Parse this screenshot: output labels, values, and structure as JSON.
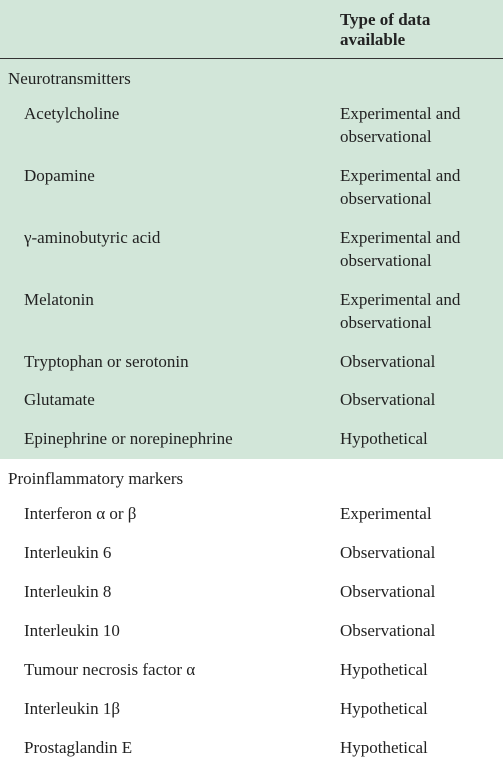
{
  "header": {
    "col1": "",
    "col2": "Type of data available"
  },
  "sections": [
    {
      "bg": "bg-green",
      "title": "Neurotransmitters",
      "rows": [
        {
          "name": "Acetylcholine",
          "data": "Experimental and observational"
        },
        {
          "name": "Dopamine",
          "data": "Experimental and observational"
        },
        {
          "name": "γ-aminobutyric acid",
          "data": "Experimental and observational"
        },
        {
          "name": "Melatonin",
          "data": "Experimental and observational"
        },
        {
          "name": "Tryptophan or serotonin",
          "data": "Observational"
        },
        {
          "name": "Glutamate",
          "data": "Observational"
        },
        {
          "name": "Epinephrine or norepinephrine",
          "data": "Hypothetical"
        }
      ]
    },
    {
      "bg": "bg-white",
      "title": "Proinflammatory markers",
      "rows": [
        {
          "name": "Interferon α or β",
          "data": "Experimental"
        },
        {
          "name": "Interleukin 6",
          "data": "Observational"
        },
        {
          "name": "Interleukin 8",
          "data": "Observational"
        },
        {
          "name": "Interleukin 10",
          "data": "Observational"
        },
        {
          "name": "Tumour necrosis factor α",
          "data": "Hypothetical"
        },
        {
          "name": "Interleukin 1β",
          "data": "Hypothetical"
        },
        {
          "name": "Prostaglandin E",
          "data": "Hypothetical"
        }
      ]
    }
  ]
}
